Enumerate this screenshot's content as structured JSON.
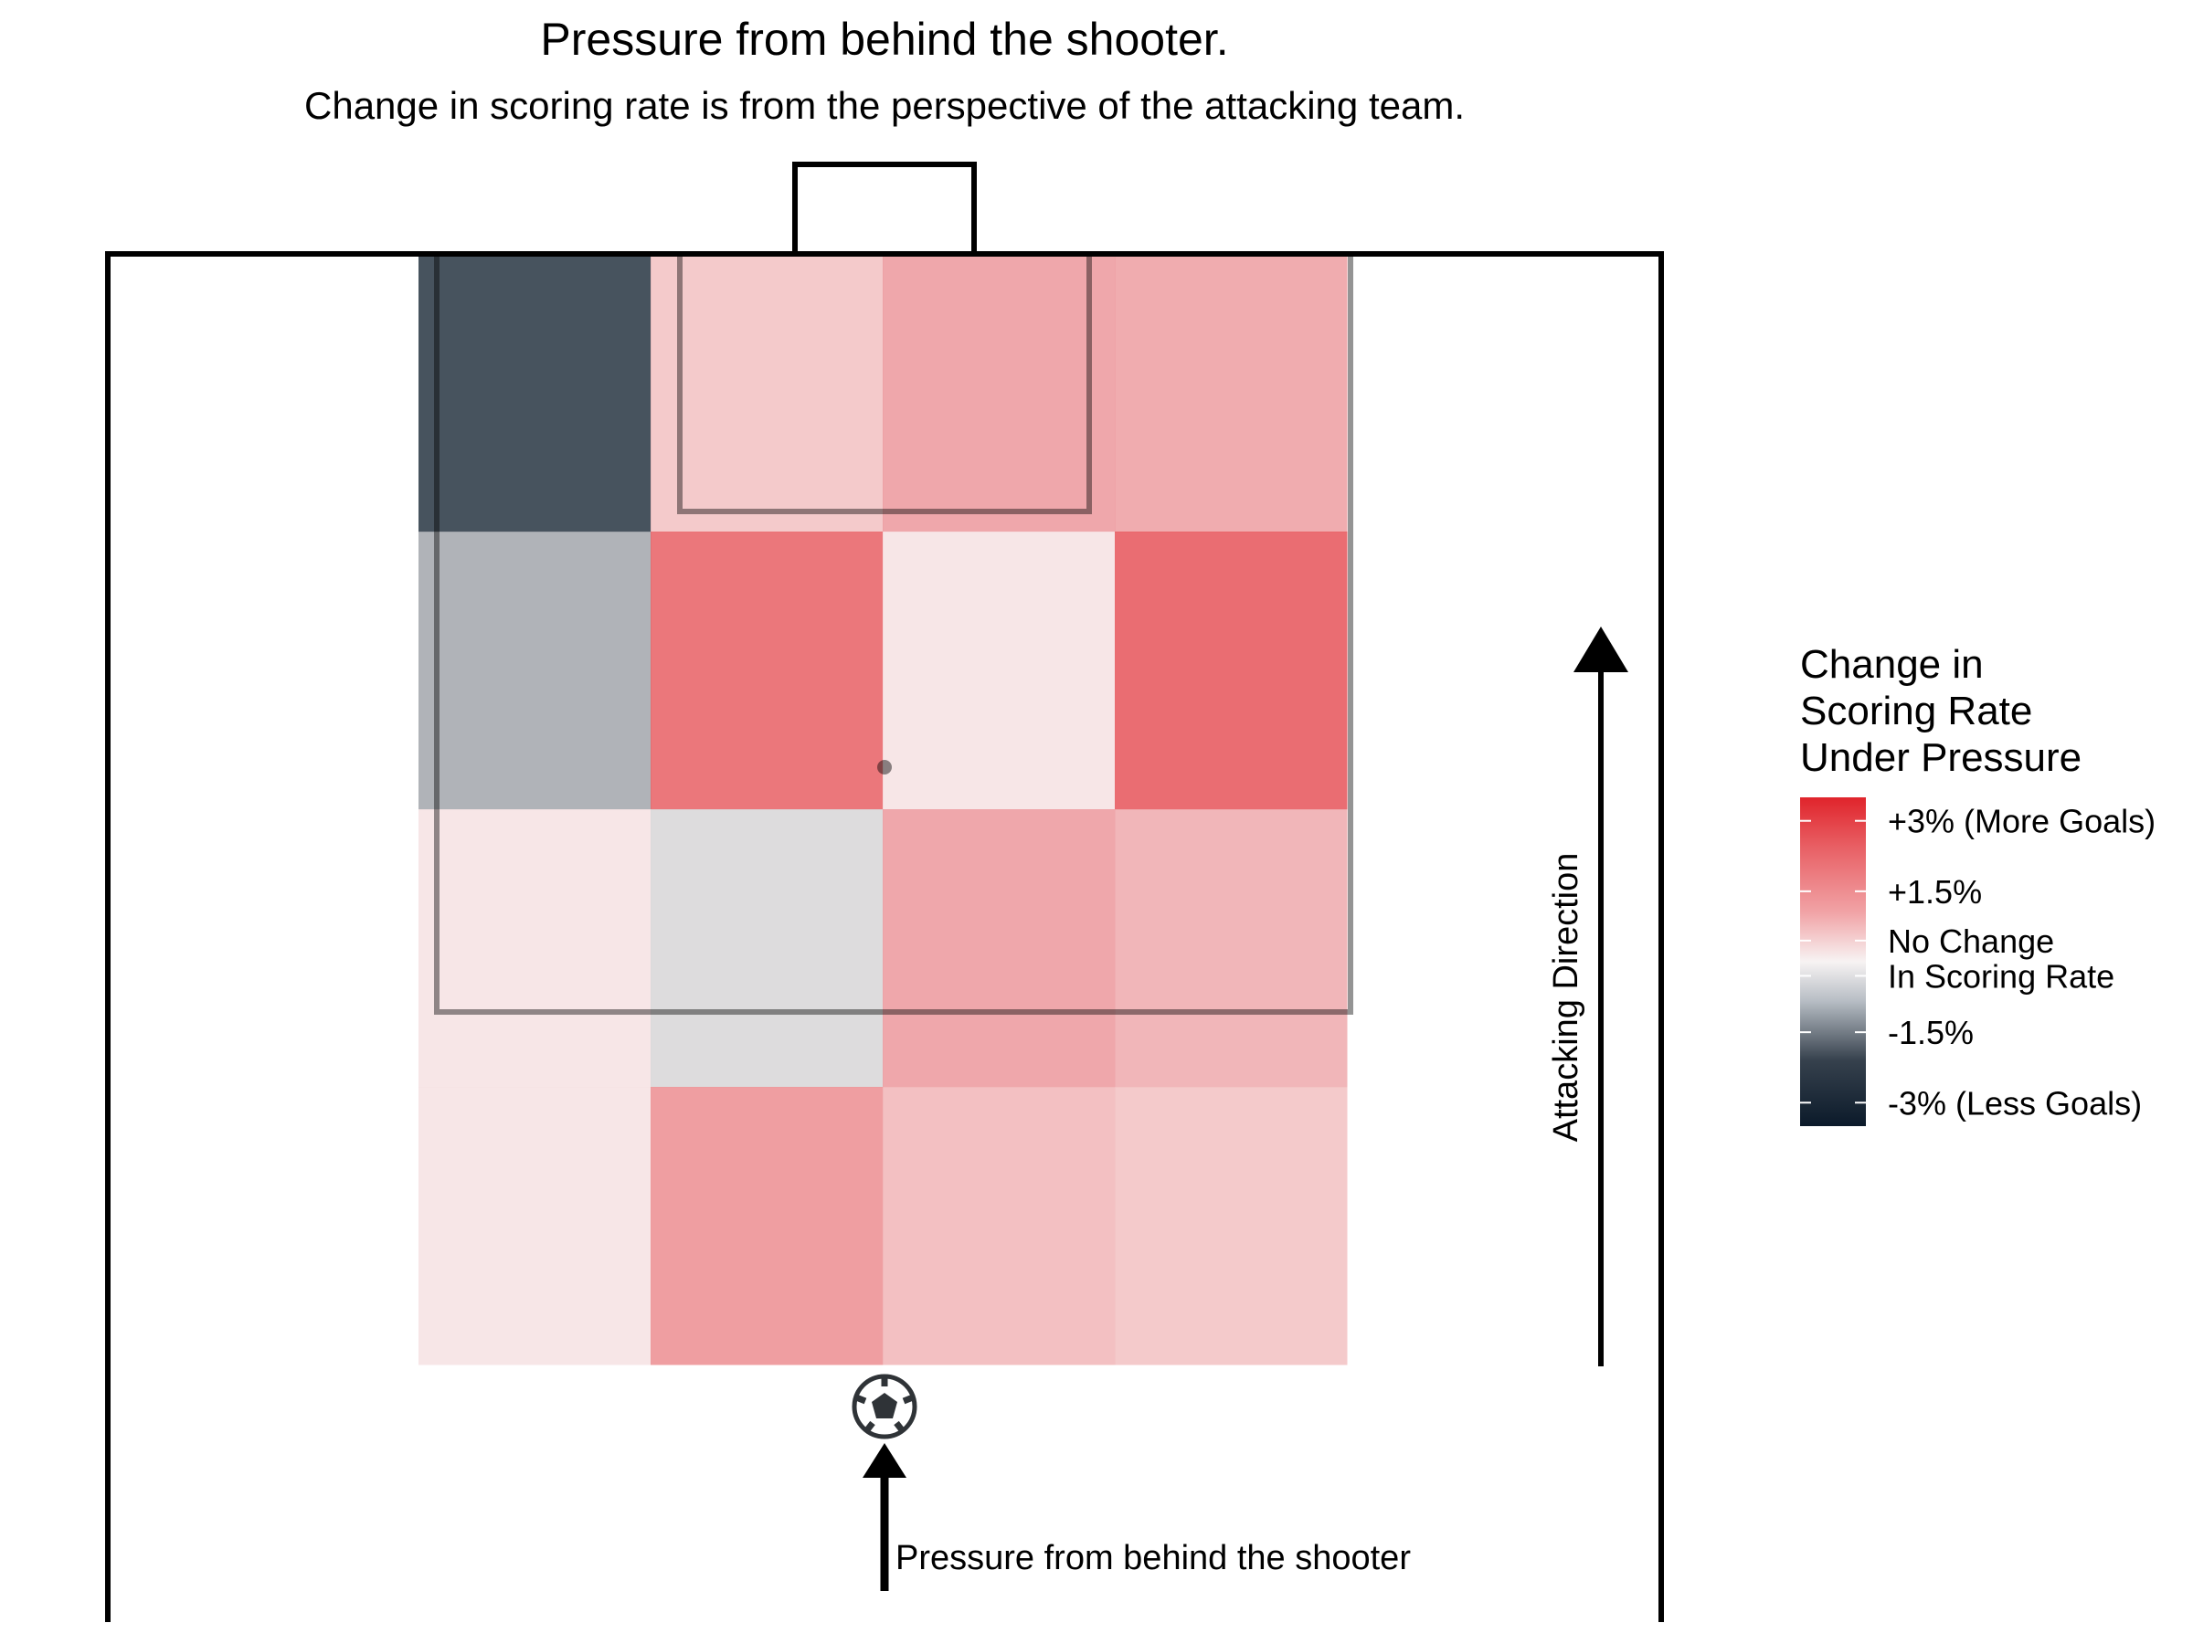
{
  "chart_data": {
    "type": "heatmap",
    "title": "Pressure from behind the shooter.",
    "subtitle": "Change in scoring rate is from the perspective of the attacking team.",
    "rows": [
      [
        -3.2,
        0.9,
        1.6,
        1.5
      ],
      [
        -1.3,
        2.6,
        0.3,
        2.8
      ],
      [
        0.3,
        -0.5,
        1.6,
        1.3
      ],
      [
        0.3,
        1.8,
        1.1,
        0.9
      ]
    ],
    "color_scale": {
      "min": -3.5,
      "max": 3.5,
      "low_color": "#0b1a2a",
      "mid_color": "#f7f3f3",
      "high_color": "#e0242b"
    },
    "legend": {
      "title_lines": [
        "Change in",
        "Scoring Rate",
        "Under Pressure"
      ],
      "labels": [
        {
          "value": 3,
          "text": "+3% (More Goals)"
        },
        {
          "value": 1.5,
          "text": "+1.5%"
        },
        {
          "value": 0.45,
          "text": "No Change"
        },
        {
          "value": -0.3,
          "text": "In Scoring Rate"
        },
        {
          "value": -1.5,
          "text": "-1.5%"
        },
        {
          "value": -3,
          "text": "-3% (Less Goals)"
        }
      ],
      "placement": "right"
    },
    "annotations": {
      "attacking_direction": "Attacking Direction",
      "pressure_label": "Pressure from behind the shooter"
    },
    "icons": {
      "ball": "soccer-ball-icon",
      "shooter_marker": "shooter-position-dot"
    }
  }
}
